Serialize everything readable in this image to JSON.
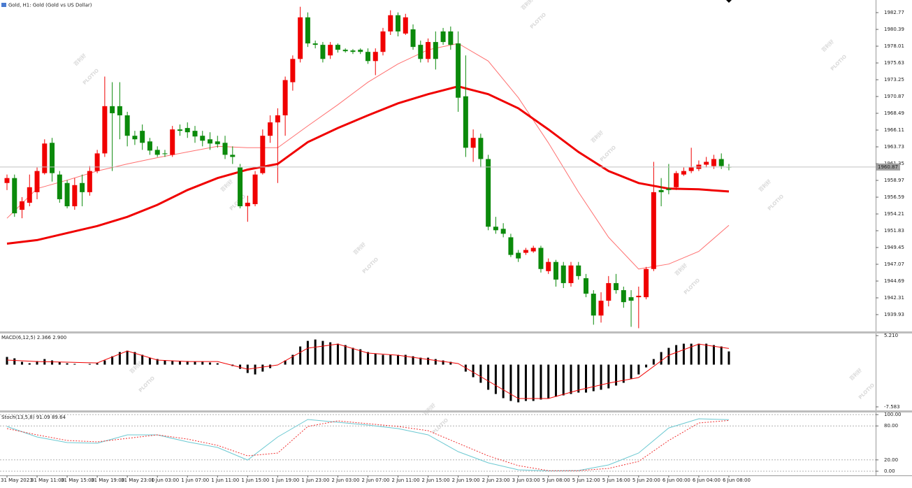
{
  "chart_data": [
    {
      "type": "candlestick",
      "title": "Gold, H1:  Gold (Gold vs US Dollar)",
      "watermark": "百利好",
      "watermark_brand": "PLOTIO",
      "categories": [
        "31 May 2023",
        null,
        null,
        null,
        "31 May 11:00",
        null,
        null,
        null,
        "31 May 15:00",
        null,
        null,
        null,
        "31 May 19:00",
        null,
        null,
        null,
        "31 May 23:00",
        null,
        null,
        null,
        "1 Jun 03:00",
        null,
        null,
        null,
        "1 Jun 07:00",
        null,
        null,
        null,
        "1 Jun 11:00",
        null,
        null,
        null,
        "1 Jun 15:00",
        null,
        null,
        null,
        "1 Jun 19:00",
        null,
        null,
        null,
        "1 Jun 23:00",
        null,
        null,
        null,
        "2 Jun 03:00",
        null,
        null,
        null,
        "2 Jun 07:00",
        null,
        null,
        null,
        "2 Jun 11:00",
        null,
        null,
        null,
        "2 Jun 15:00",
        null,
        null,
        null,
        "2 Jun 19:00",
        null,
        null,
        null,
        "2 Jun 23:00",
        null,
        null,
        null,
        "3 Jun 03:00",
        null,
        null,
        null,
        "5 Jun 08:00",
        null,
        null,
        null,
        "5 Jun 12:00",
        null,
        null,
        null,
        "5 Jun 16:00",
        null,
        null,
        null,
        "5 Jun 20:00",
        null,
        null,
        null,
        "6 Jun 00:00",
        null,
        null,
        null,
        "6 Jun 04:00",
        null,
        null,
        null,
        "6 Jun 08:00"
      ],
      "open": [
        1958.6,
        1959.3,
        1954.8,
        1955.8,
        1957.3,
        1960.0,
        1964.3,
        1959.8,
        1958.6,
        1955.3,
        1958.6,
        1957.3,
        1960.3,
        1962.8,
        1969.5,
        1969.5,
        1968.2,
        1965.3,
        1966.0,
        1964.5,
        1963.3,
        1962.8,
        1962.6,
        1966.2,
        1966.4,
        1966.0,
        1965.3,
        1964.8,
        1964.5,
        1964.3,
        1962.6,
        1960.8,
        1955.3,
        1955.6,
        1960.0,
        1965.3,
        1967.2,
        1968.2,
        1972.9,
        1976.2,
        1982.1,
        1978.4,
        1978.2,
        1976.7,
        1978.2,
        1977.5,
        1977.4,
        1977.5,
        1977.2,
        1975.9,
        1977.2,
        1980.1,
        1982.4,
        1979.8,
        1980.4,
        1978.2,
        1976.2,
        1978.6,
        1980.1,
        1980.1,
        1978.4,
        1970.9,
        1963.6,
        1965.0,
        1962.0,
        1952.4,
        1952.1,
        1950.9,
        1948.7,
        1948.7,
        1948.9,
        1949.4,
        1946.1,
        1947.4,
        1946.9,
        1944.4,
        1946.9,
        1945.1,
        1942.9,
        1939.8,
        1941.9,
        1944.4,
        1943.4,
        1942.4,
        1942.4,
        1942.4,
        1946.4,
        1957.6,
        1957.8,
        1958.0,
        1959.8,
        1960.3,
        1960.6,
        1961.2,
        1961.0,
        1962.0,
        1960.9
      ],
      "high": [
        1959.8,
        1959.8,
        1956.6,
        1959.8,
        1960.8,
        1964.8,
        1965.0,
        1960.3,
        1959.0,
        1959.3,
        1959.8,
        1961.0,
        1963.3,
        1973.7,
        1972.9,
        1972.9,
        1968.7,
        1966.0,
        1966.9,
        1965.0,
        1963.8,
        1963.3,
        1966.7,
        1966.9,
        1967.2,
        1966.7,
        1966.0,
        1965.8,
        1965.3,
        1965.3,
        1963.8,
        1961.3,
        1956.8,
        1960.3,
        1966.2,
        1968.2,
        1969.2,
        1973.7,
        1976.7,
        1983.6,
        1982.8,
        1978.8,
        1978.6,
        1978.6,
        1978.4,
        1977.7,
        1977.6,
        1977.7,
        1977.7,
        1977.7,
        1980.6,
        1983.1,
        1982.8,
        1982.6,
        1981.1,
        1978.8,
        1979.1,
        1980.1,
        1980.6,
        1980.8,
        1980.1,
        1976.7,
        1966.2,
        1965.6,
        1962.6,
        1953.8,
        1952.9,
        1951.4,
        1949.1,
        1949.4,
        1949.7,
        1949.7,
        1947.9,
        1947.7,
        1947.4,
        1947.4,
        1947.4,
        1945.7,
        1943.4,
        1943.1,
        1945.4,
        1945.7,
        1943.9,
        1943.4,
        1943.9,
        1946.7,
        1961.6,
        1959.3,
        1961.3,
        1960.3,
        1960.8,
        1963.6,
        1961.8,
        1962.3,
        1962.6,
        1962.8,
        1961.3
      ],
      "low": [
        1957.6,
        1953.8,
        1953.6,
        1955.3,
        1956.3,
        1959.8,
        1958.8,
        1955.8,
        1955.0,
        1954.8,
        1955.3,
        1956.8,
        1960.0,
        1962.3,
        1960.3,
        1964.8,
        1963.8,
        1964.0,
        1963.3,
        1962.6,
        1962.3,
        1962.3,
        1962.3,
        1965.3,
        1965.0,
        1964.3,
        1963.8,
        1963.3,
        1963.6,
        1962.0,
        1961.3,
        1955.0,
        1953.1,
        1955.3,
        1959.8,
        1964.3,
        1958.6,
        1965.3,
        1971.7,
        1975.7,
        1977.9,
        1977.7,
        1975.7,
        1976.2,
        1977.1,
        1977.1,
        1976.9,
        1976.9,
        1975.5,
        1973.9,
        1976.7,
        1979.6,
        1979.4,
        1979.6,
        1977.5,
        1975.7,
        1975.7,
        1974.7,
        1978.2,
        1977.5,
        1968.7,
        1962.3,
        1961.6,
        1960.8,
        1951.9,
        1951.4,
        1950.9,
        1948.1,
        1947.4,
        1948.4,
        1948.7,
        1945.9,
        1945.7,
        1943.9,
        1943.7,
        1943.9,
        1944.9,
        1942.4,
        1938.5,
        1938.8,
        1941.1,
        1942.9,
        1940.9,
        1938.2,
        1938.0,
        1942.1,
        1946.1,
        1955.3,
        1957.0,
        1957.6,
        1959.6,
        1960.0,
        1960.3,
        1960.8,
        1960.6,
        1960.6,
        1960.4
      ],
      "close": [
        1959.3,
        1954.3,
        1956.0,
        1958.0,
        1960.3,
        1964.2,
        1960.0,
        1956.3,
        1955.3,
        1958.3,
        1957.3,
        1960.3,
        1962.8,
        1969.5,
        1968.5,
        1968.2,
        1965.3,
        1964.8,
        1964.3,
        1963.2,
        1962.6,
        1962.7,
        1966.2,
        1966.0,
        1965.8,
        1965.2,
        1964.6,
        1964.2,
        1964.1,
        1962.6,
        1962.3,
        1955.3,
        1955.8,
        1959.8,
        1965.3,
        1967.2,
        1968.2,
        1973.2,
        1976.2,
        1982.1,
        1978.4,
        1978.2,
        1976.2,
        1978.2,
        1977.5,
        1977.3,
        1977.2,
        1977.2,
        1975.9,
        1977.2,
        1980.1,
        1982.4,
        1980.1,
        1982.1,
        1977.9,
        1976.2,
        1978.6,
        1976.2,
        1978.6,
        1978.2,
        1970.7,
        1963.6,
        1965.0,
        1962.0,
        1952.4,
        1951.9,
        1951.4,
        1948.4,
        1947.9,
        1949.1,
        1949.4,
        1946.4,
        1947.4,
        1944.9,
        1944.4,
        1946.9,
        1945.4,
        1942.9,
        1939.8,
        1941.9,
        1944.4,
        1943.4,
        1941.7,
        1941.9,
        1942.6,
        1946.4,
        1957.3,
        1957.3,
        1957.6,
        1960.0,
        1960.3,
        1960.8,
        1961.2,
        1961.6,
        1962.0,
        1961.0,
        1960.8
      ],
      "up_color": "#f00000",
      "down_color": "#0b8a0b",
      "current_price": 1960.87,
      "lines": [
        {
          "color": "#ff7070",
          "width": 1,
          "x": [
            0,
            4,
            8,
            12,
            16,
            20,
            24,
            28,
            32,
            36,
            40,
            44,
            48,
            52,
            56,
            60,
            64,
            68,
            72,
            76,
            80,
            84,
            88,
            92,
            96
          ],
          "values": [
            1953.6,
            1957.8,
            1959.0,
            1960.3,
            1961.3,
            1962.2,
            1963.0,
            1963.8,
            1963.6,
            1963.6,
            1966.7,
            1969.7,
            1972.9,
            1975.5,
            1977.5,
            1978.4,
            1975.9,
            1970.7,
            1964.3,
            1957.3,
            1950.9,
            1946.4,
            1947.1,
            1948.9,
            1952.6
          ]
        },
        {
          "color": "#f00000",
          "width": 3,
          "x": [
            0,
            4,
            8,
            12,
            16,
            20,
            24,
            28,
            32,
            36,
            40,
            44,
            48,
            52,
            56,
            60,
            64,
            68,
            72,
            76,
            80,
            84,
            88,
            92,
            96
          ],
          "values": [
            1950.0,
            1950.5,
            1951.5,
            1952.5,
            1953.8,
            1955.5,
            1957.6,
            1959.3,
            1960.5,
            1961.3,
            1964.4,
            1966.4,
            1968.2,
            1969.9,
            1971.2,
            1972.3,
            1971.2,
            1969.2,
            1966.2,
            1963.0,
            1960.3,
            1958.6,
            1957.8,
            1957.7,
            1957.4
          ]
        }
      ],
      "ylim": [
        1937.55,
        1984.56
      ],
      "yticks": [
        1982.77,
        1980.39,
        1978.01,
        1975.63,
        1973.25,
        1970.87,
        1968.49,
        1966.11,
        1963.73,
        1961.35,
        1958.97,
        1956.59,
        1954.21,
        1951.83,
        1949.45,
        1947.07,
        1944.69,
        1942.31,
        1939.93
      ]
    },
    {
      "type": "macd",
      "label": "MACD(6,12,5) 2.366 2.900",
      "histogram": {
        "color": "#000000",
        "values": [
          1.38,
          1.13,
          0.5,
          0.25,
          0.63,
          1.0,
          0.75,
          0.5,
          0.25,
          0.13,
          0,
          0.13,
          0.25,
          0.75,
          1.5,
          2.26,
          2.51,
          2.26,
          1.76,
          1.25,
          1.0,
          0.75,
          0.63,
          0.63,
          0.63,
          0.5,
          0.5,
          0.38,
          0.25,
          0,
          -0.25,
          -0.75,
          -1.5,
          -1.76,
          -1.25,
          -0.63,
          0,
          0.75,
          1.76,
          3.26,
          4.26,
          4.51,
          4.26,
          4.01,
          3.76,
          3.51,
          3.01,
          2.76,
          2.26,
          2.01,
          1.76,
          1.76,
          1.76,
          1.76,
          1.5,
          1.25,
          1.25,
          1.0,
          0.75,
          0.5,
          0,
          -1.25,
          -2.26,
          -3.26,
          -4.51,
          -5.27,
          -6.02,
          -6.52,
          -6.77,
          -6.52,
          -6.52,
          -6.27,
          -6.02,
          -5.77,
          -5.52,
          -5.27,
          -5.02,
          -5.02,
          -4.77,
          -4.51,
          -4.26,
          -3.76,
          -3.26,
          -2.51,
          -1.76,
          -0.5,
          1.0,
          2.26,
          3.01,
          3.51,
          3.76,
          3.76,
          3.76,
          3.76,
          3.51,
          3.26,
          2.37
        ]
      },
      "series": [
        {
          "color": "#f00000",
          "x": [
            0,
            4,
            8,
            12,
            16,
            20,
            24,
            28,
            32,
            36,
            40,
            44,
            48,
            52,
            56,
            60,
            64,
            68,
            72,
            76,
            80,
            84,
            88,
            92,
            96
          ],
          "values": [
            0.82,
            0.56,
            0.44,
            0.31,
            2.45,
            0.82,
            0.56,
            0.56,
            -0.82,
            -0.06,
            2.95,
            3.7,
            2.07,
            1.69,
            0.94,
            0.19,
            -2.95,
            -6.08,
            -6.08,
            -4.58,
            -3.32,
            -2.32,
            1.69,
            3.7,
            2.9
          ]
        }
      ],
      "ylim": [
        -8.09,
        5.59
      ],
      "yticks": [
        {
          "value": 5.21,
          "label": "5.210"
        },
        -7.583
      ]
    },
    {
      "type": "stochastic",
      "label": "Stoch(13,5,8) 91.09 89.64",
      "series": [
        {
          "color": "#6cc9d2",
          "dash": false,
          "x": [
            0,
            4,
            8,
            12,
            16,
            20,
            24,
            28,
            32,
            36,
            40,
            44,
            48,
            52,
            56,
            60,
            64,
            68,
            72,
            76,
            80,
            84,
            88,
            92,
            96
          ],
          "values": [
            79.0,
            60.5,
            50.6,
            49.4,
            64.2,
            64.2,
            51.9,
            42.0,
            19.8,
            60.5,
            91.4,
            86.4,
            81.5,
            75.3,
            64.2,
            34.6,
            14.8,
            2.5,
            0.6,
            1.2,
            11.1,
            32.1,
            76.5,
            92.6,
            91.09
          ]
        },
        {
          "color": "#f03030",
          "dash": true,
          "x": [
            0,
            4,
            8,
            12,
            16,
            20,
            24,
            28,
            32,
            36,
            40,
            44,
            48,
            52,
            56,
            60,
            64,
            68,
            72,
            76,
            80,
            84,
            88,
            92,
            96
          ],
          "values": [
            75.3,
            64.2,
            54.3,
            51.9,
            58.0,
            64.2,
            56.8,
            45.7,
            27.2,
            32.1,
            79.0,
            88.9,
            84.0,
            79.0,
            71.6,
            49.4,
            27.2,
            9.9,
            1.0,
            1.0,
            4.9,
            17.3,
            54.3,
            85.2,
            89.64
          ]
        }
      ],
      "ylim": [
        -7.4,
        102.5
      ],
      "yticks": [
        {
          "value": 100,
          "label": "100.00"
        },
        {
          "value": 80,
          "label": "80.00"
        },
        {
          "value": 20,
          "label": "20.00"
        },
        {
          "value": 0,
          "label": "0.00"
        }
      ]
    }
  ]
}
